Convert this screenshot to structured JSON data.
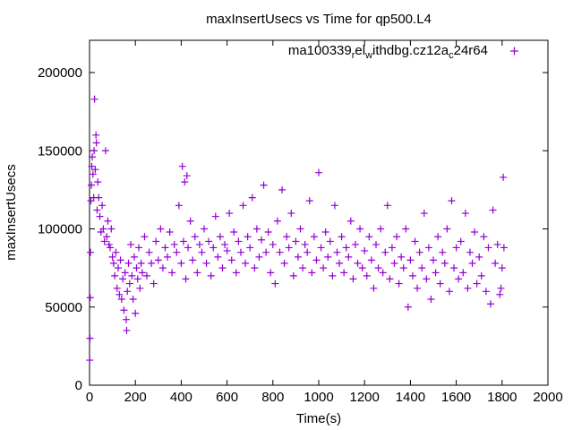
{
  "chart_data": {
    "type": "scatter",
    "title": "maxInsertUsecs vs Time for qp500.L4",
    "xlabel": "Time(s)",
    "ylabel": "maxInsertUsecs",
    "xlim": [
      0,
      2000
    ],
    "ylim": [
      0,
      220000
    ],
    "xticks": [
      "0",
      "200",
      "400",
      "600",
      "800",
      "1000",
      "1200",
      "1400",
      "1600",
      "1800",
      "2000"
    ],
    "yticks": [
      "0",
      "50000",
      "100000",
      "150000",
      "200000"
    ],
    "legend_position": "top-right",
    "grid": false,
    "series": [
      {
        "name": "ma100339_rel_withdbg.cz12a_c24r64",
        "legend_parts": [
          "ma100339",
          "r",
          "el",
          "w",
          "ithdbg.cz12a",
          "c",
          "24r64"
        ],
        "color": "#9400D3",
        "marker": "plus",
        "points": [
          [
            1,
            16000
          ],
          [
            2,
            30000
          ],
          [
            3,
            56000
          ],
          [
            4,
            85000
          ],
          [
            6,
            118000
          ],
          [
            8,
            128000
          ],
          [
            10,
            140000
          ],
          [
            12,
            146000
          ],
          [
            15,
            135000
          ],
          [
            18,
            120000
          ],
          [
            20,
            150000
          ],
          [
            22,
            183000
          ],
          [
            25,
            138000
          ],
          [
            28,
            160000
          ],
          [
            30,
            155000
          ],
          [
            33,
            112000
          ],
          [
            36,
            130000
          ],
          [
            40,
            120000
          ],
          [
            45,
            108000
          ],
          [
            50,
            98000
          ],
          [
            55,
            115000
          ],
          [
            60,
            100000
          ],
          [
            65,
            92000
          ],
          [
            70,
            150000
          ],
          [
            75,
            95000
          ],
          [
            80,
            105000
          ],
          [
            85,
            90000
          ],
          [
            90,
            88000
          ],
          [
            95,
            100000
          ],
          [
            100,
            82000
          ],
          [
            105,
            78000
          ],
          [
            110,
            70000
          ],
          [
            115,
            85000
          ],
          [
            120,
            62000
          ],
          [
            125,
            75000
          ],
          [
            130,
            58000
          ],
          [
            135,
            80000
          ],
          [
            140,
            55000
          ],
          [
            145,
            68000
          ],
          [
            150,
            48000
          ],
          [
            155,
            72000
          ],
          [
            160,
            42000
          ],
          [
            162,
            35000
          ],
          [
            165,
            60000
          ],
          [
            170,
            78000
          ],
          [
            175,
            65000
          ],
          [
            180,
            90000
          ],
          [
            185,
            70000
          ],
          [
            190,
            55000
          ],
          [
            195,
            82000
          ],
          [
            200,
            46000
          ],
          [
            205,
            75000
          ],
          [
            210,
            68000
          ],
          [
            215,
            88000
          ],
          [
            220,
            62000
          ],
          [
            225,
            78000
          ],
          [
            230,
            72000
          ],
          [
            240,
            95000
          ],
          [
            250,
            70000
          ],
          [
            260,
            85000
          ],
          [
            270,
            78000
          ],
          [
            280,
            65000
          ],
          [
            290,
            92000
          ],
          [
            300,
            80000
          ],
          [
            310,
            100000
          ],
          [
            320,
            75000
          ],
          [
            330,
            88000
          ],
          [
            340,
            82000
          ],
          [
            350,
            98000
          ],
          [
            360,
            72000
          ],
          [
            370,
            90000
          ],
          [
            380,
            85000
          ],
          [
            390,
            115000
          ],
          [
            400,
            78000
          ],
          [
            405,
            140000
          ],
          [
            410,
            92000
          ],
          [
            415,
            130000
          ],
          [
            420,
            68000
          ],
          [
            425,
            134000
          ],
          [
            430,
            88000
          ],
          [
            440,
            105000
          ],
          [
            450,
            80000
          ],
          [
            460,
            95000
          ],
          [
            470,
            72000
          ],
          [
            480,
            90000
          ],
          [
            490,
            85000
          ],
          [
            500,
            100000
          ],
          [
            510,
            78000
          ],
          [
            520,
            92000
          ],
          [
            530,
            70000
          ],
          [
            540,
            88000
          ],
          [
            550,
            108000
          ],
          [
            560,
            82000
          ],
          [
            570,
            95000
          ],
          [
            580,
            75000
          ],
          [
            590,
            90000
          ],
          [
            600,
            86000
          ],
          [
            610,
            110000
          ],
          [
            620,
            80000
          ],
          [
            630,
            98000
          ],
          [
            640,
            72000
          ],
          [
            650,
            92000
          ],
          [
            660,
            85000
          ],
          [
            670,
            115000
          ],
          [
            680,
            78000
          ],
          [
            690,
            95000
          ],
          [
            700,
            88000
          ],
          [
            710,
            120000
          ],
          [
            720,
            75000
          ],
          [
            730,
            100000
          ],
          [
            740,
            82000
          ],
          [
            750,
            93000
          ],
          [
            760,
            128000
          ],
          [
            770,
            85000
          ],
          [
            780,
            98000
          ],
          [
            790,
            72000
          ],
          [
            800,
            90000
          ],
          [
            810,
            65000
          ],
          [
            820,
            105000
          ],
          [
            830,
            85000
          ],
          [
            840,
            125000
          ],
          [
            850,
            78000
          ],
          [
            860,
            95000
          ],
          [
            870,
            88000
          ],
          [
            880,
            110000
          ],
          [
            890,
            70000
          ],
          [
            900,
            92000
          ],
          [
            910,
            82000
          ],
          [
            920,
            100000
          ],
          [
            930,
            75000
          ],
          [
            940,
            90000
          ],
          [
            950,
            85000
          ],
          [
            960,
            118000
          ],
          [
            970,
            72000
          ],
          [
            980,
            95000
          ],
          [
            990,
            80000
          ],
          [
            1000,
            136000
          ],
          [
            1010,
            88000
          ],
          [
            1020,
            75000
          ],
          [
            1030,
            98000
          ],
          [
            1040,
            82000
          ],
          [
            1050,
            92000
          ],
          [
            1060,
            70000
          ],
          [
            1070,
            115000
          ],
          [
            1080,
            85000
          ],
          [
            1090,
            78000
          ],
          [
            1100,
            95000
          ],
          [
            1110,
            72000
          ],
          [
            1120,
            88000
          ],
          [
            1130,
            82000
          ],
          [
            1140,
            105000
          ],
          [
            1150,
            68000
          ],
          [
            1160,
            90000
          ],
          [
            1170,
            78000
          ],
          [
            1180,
            100000
          ],
          [
            1190,
            75000
          ],
          [
            1200,
            86000
          ],
          [
            1210,
            70000
          ],
          [
            1220,
            95000
          ],
          [
            1230,
            80000
          ],
          [
            1240,
            62000
          ],
          [
            1250,
            90000
          ],
          [
            1260,
            75000
          ],
          [
            1270,
            100000
          ],
          [
            1280,
            72000
          ],
          [
            1290,
            85000
          ],
          [
            1300,
            115000
          ],
          [
            1310,
            68000
          ],
          [
            1320,
            88000
          ],
          [
            1330,
            78000
          ],
          [
            1340,
            95000
          ],
          [
            1350,
            65000
          ],
          [
            1360,
            82000
          ],
          [
            1370,
            75000
          ],
          [
            1380,
            100000
          ],
          [
            1390,
            50000
          ],
          [
            1400,
            80000
          ],
          [
            1410,
            70000
          ],
          [
            1420,
            92000
          ],
          [
            1430,
            62000
          ],
          [
            1440,
            85000
          ],
          [
            1450,
            75000
          ],
          [
            1460,
            110000
          ],
          [
            1470,
            68000
          ],
          [
            1480,
            88000
          ],
          [
            1490,
            55000
          ],
          [
            1500,
            80000
          ],
          [
            1510,
            72000
          ],
          [
            1520,
            95000
          ],
          [
            1530,
            65000
          ],
          [
            1540,
            85000
          ],
          [
            1550,
            78000
          ],
          [
            1560,
            100000
          ],
          [
            1570,
            60000
          ],
          [
            1580,
            118000
          ],
          [
            1590,
            75000
          ],
          [
            1600,
            88000
          ],
          [
            1610,
            68000
          ],
          [
            1620,
            92000
          ],
          [
            1630,
            72000
          ],
          [
            1640,
            110000
          ],
          [
            1650,
            62000
          ],
          [
            1660,
            85000
          ],
          [
            1670,
            78000
          ],
          [
            1680,
            98000
          ],
          [
            1690,
            65000
          ],
          [
            1700,
            82000
          ],
          [
            1710,
            70000
          ],
          [
            1720,
            95000
          ],
          [
            1730,
            60000
          ],
          [
            1740,
            88000
          ],
          [
            1750,
            52000
          ],
          [
            1760,
            112000
          ],
          [
            1770,
            78000
          ],
          [
            1780,
            90000
          ],
          [
            1790,
            58000
          ],
          [
            1795,
            62000
          ],
          [
            1800,
            75000
          ],
          [
            1805,
            133000
          ],
          [
            1808,
            88000
          ]
        ]
      }
    ]
  }
}
